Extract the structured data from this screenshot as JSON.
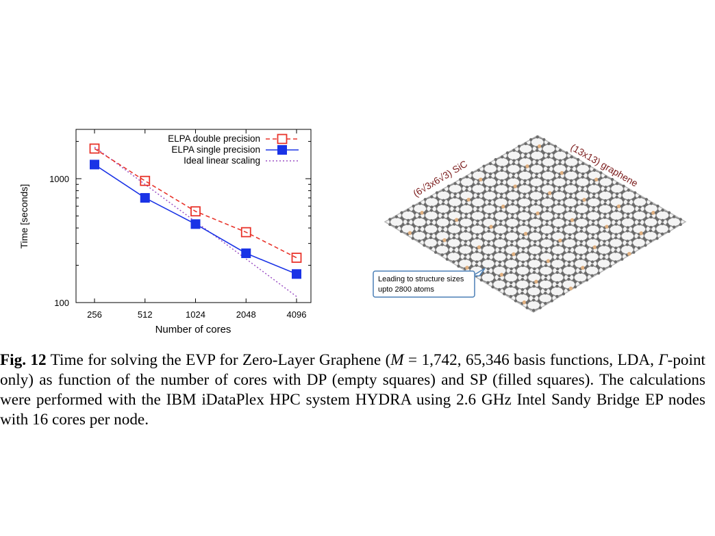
{
  "chart_data": {
    "type": "line",
    "xlabel": "Number of cores",
    "ylabel": "Time [seconds]",
    "x": [
      256,
      512,
      1024,
      2048,
      4096
    ],
    "x_tick_labels": [
      "256",
      "512",
      "1024",
      "2048",
      "4096"
    ],
    "y_scale": "log",
    "ylim": [
      100,
      2500
    ],
    "y_tick_labels": [
      "100",
      "1000"
    ],
    "legend_position": "top-right",
    "series": [
      {
        "name": "ELPA double precision",
        "style": "dashed",
        "marker": "open-square",
        "color": "#e8332a",
        "values": [
          1750,
          960,
          545,
          370,
          230
        ]
      },
      {
        "name": "ELPA single precision",
        "style": "solid",
        "marker": "filled-square",
        "color": "#1a33e6",
        "values": [
          1300,
          700,
          430,
          250,
          170
        ]
      },
      {
        "name": "Ideal linear scaling",
        "style": "dotted",
        "marker": "none",
        "color": "#9b4fc4",
        "values": [
          1800,
          900,
          450,
          225,
          112
        ]
      }
    ]
  },
  "figure_labels": {
    "sic_label": "(6√3x6√3) SiC",
    "graphene_label": "(13x13) graphene",
    "callout_line1": "Leading to structure sizes",
    "callout_line2": "upto 2800 atoms",
    "colors": {
      "carbon": "#6b6b6b",
      "silicon": "#e0b080",
      "label": "#7a1a1a",
      "callout_border": "#4a7fb5"
    }
  },
  "caption": {
    "fig_label": "Fig. 12",
    "text_1": "Time for solving the EVP for Zero-Layer Graphene (",
    "m_symbol": "M",
    "text_2": " = 1,742, 65,346 basis functions, LDA, ",
    "gamma_symbol": "Γ",
    "text_3": "-point only) as function of the number of cores with DP (empty squares) and SP (filled squares). The calculations were performed with the IBM iDataPlex HPC system HYDRA using 2.6 GHz Intel Sandy Bridge EP nodes with 16 cores per node."
  }
}
